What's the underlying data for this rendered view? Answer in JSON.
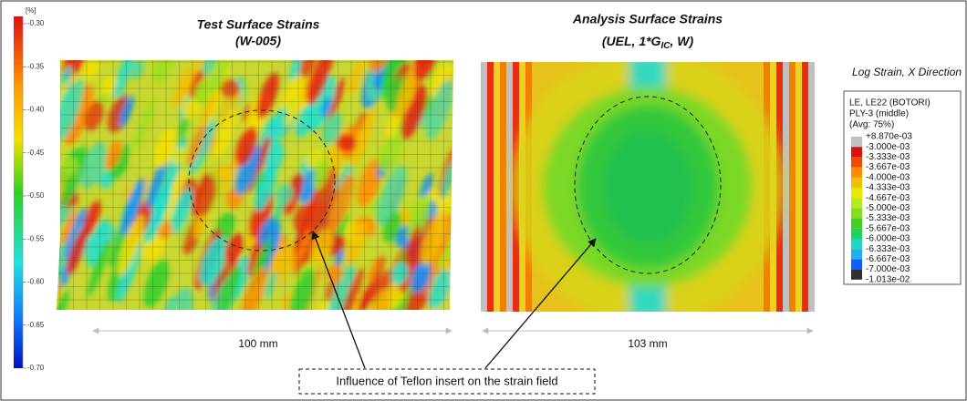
{
  "colorbar": {
    "unit": "[%]",
    "ticks": [
      "-0.30",
      "-0.35",
      "-0.40",
      "-0.45",
      "-0.50",
      "-0.55",
      "-0.60",
      "-0.65",
      "-0.70"
    ]
  },
  "left_panel": {
    "title": "Test Surface Strains",
    "subtitle": "(W-005)",
    "dimension": "100 mm"
  },
  "right_panel": {
    "title": "Analysis Surface Strains",
    "subtitle_prefix": "(UEL, 1*G",
    "subtitle_sub": "IC",
    "subtitle_suffix": ", W)",
    "dimension": "103 mm"
  },
  "legend": {
    "caption": "Log Strain, X Direction",
    "header": [
      "LE, LE22 (BOTORI)",
      "PLY-3 (middle)",
      "(Avg: 75%)"
    ],
    "labels": [
      "+8.870e-03",
      "-3.000e-03",
      "-3.333e-03",
      "-3.667e-03",
      "-4.000e-03",
      "-4.333e-03",
      "-4.667e-03",
      "-5.000e-03",
      "-5.333e-03",
      "-5.667e-03",
      "-6.000e-03",
      "-6.333e-03",
      "-6.667e-03",
      "-7.000e-03",
      "-1.013e-02"
    ]
  },
  "annotation": "Influence of Teflon insert on the strain field"
}
